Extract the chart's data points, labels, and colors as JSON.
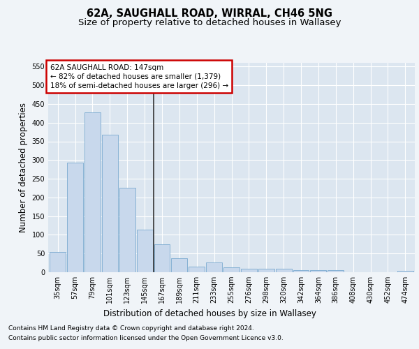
{
  "title": "62A, SAUGHALL ROAD, WIRRAL, CH46 5NG",
  "subtitle": "Size of property relative to detached houses in Wallasey",
  "xlabel": "Distribution of detached houses by size in Wallasey",
  "ylabel": "Number of detached properties",
  "categories": [
    "35sqm",
    "57sqm",
    "79sqm",
    "101sqm",
    "123sqm",
    "145sqm",
    "167sqm",
    "189sqm",
    "211sqm",
    "233sqm",
    "255sqm",
    "276sqm",
    "298sqm",
    "320sqm",
    "342sqm",
    "364sqm",
    "386sqm",
    "408sqm",
    "430sqm",
    "452sqm",
    "474sqm"
  ],
  "values": [
    55,
    293,
    428,
    368,
    225,
    113,
    75,
    38,
    15,
    26,
    13,
    10,
    9,
    10,
    6,
    5,
    5,
    0,
    0,
    0,
    4
  ],
  "bar_color": "#c8d8ec",
  "bar_edge_color": "#7aaad0",
  "vline_color": "#333333",
  "annotation_text": "62A SAUGHALL ROAD: 147sqm\n← 82% of detached houses are smaller (1,379)\n18% of semi-detached houses are larger (296) →",
  "annotation_box_color": "#ffffff",
  "annotation_box_edge_color": "#cc0000",
  "ylim": [
    0,
    560
  ],
  "yticks": [
    0,
    50,
    100,
    150,
    200,
    250,
    300,
    350,
    400,
    450,
    500,
    550
  ],
  "background_color": "#f0f4f8",
  "plot_background_color": "#dce6f0",
  "footer_line1": "Contains HM Land Registry data © Crown copyright and database right 2024.",
  "footer_line2": "Contains public sector information licensed under the Open Government Licence v3.0.",
  "title_fontsize": 10.5,
  "subtitle_fontsize": 9.5,
  "axis_label_fontsize": 8.5,
  "tick_fontsize": 7,
  "annotation_fontsize": 7.5,
  "footer_fontsize": 6.5
}
